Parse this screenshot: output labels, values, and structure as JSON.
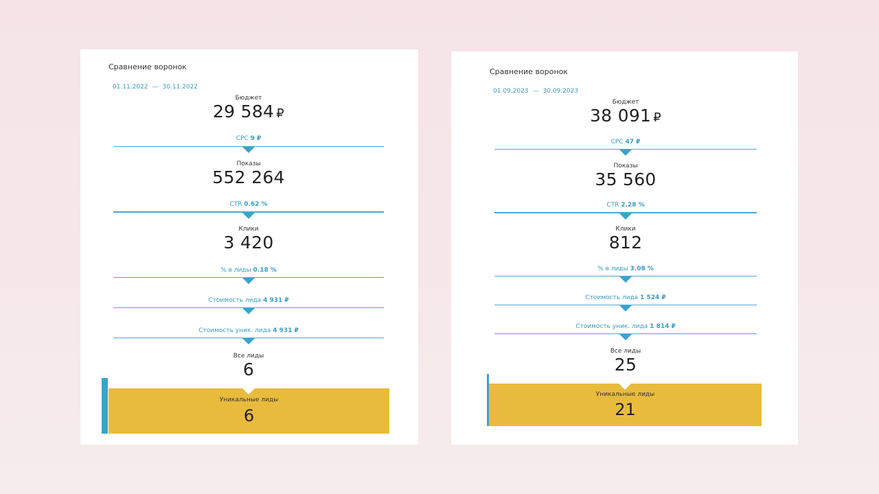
{
  "left": {
    "title": "Сравнение воронок",
    "date_from": "01.11.2022",
    "date_sep": "—",
    "date_to": "30.11.2022",
    "budget_label": "Бюджет",
    "budget_value": "29 584",
    "currency": "₽",
    "cpc_label": "CPC",
    "cpc_value": "9 ₽",
    "impressions_label": "Показы",
    "impressions_value": "552 264",
    "ctr_label": "CTR",
    "ctr_value": "0.62 %",
    "clicks_label": "Клики",
    "clicks_value": "3 420",
    "lead_rate_label": "% в лиды",
    "lead_rate_value": "0.18 %",
    "lead_cost_label": "Стоимость лида",
    "lead_cost_value": "4 931 ₽",
    "uniq_lead_cost_label": "Стоимость уник. лида",
    "uniq_lead_cost_value": "4 931 ₽",
    "all_leads_label": "Все лиды",
    "all_leads_value": "6",
    "unique_leads_label": "Уникальные лиды",
    "unique_leads_value": "6"
  },
  "right": {
    "title": "Сравнение воронок",
    "date_from": "01.09.2023",
    "date_sep": "—",
    "date_to": "30.09.2023",
    "budget_label": "Бюджет",
    "budget_value": "38 091",
    "currency": "₽",
    "cpc_label": "CPC",
    "cpc_value": "47 ₽",
    "impressions_label": "Показы",
    "impressions_value": "35 560",
    "ctr_label": "CTR",
    "ctr_value": "2.28 %",
    "clicks_label": "Клики",
    "clicks_value": "812",
    "lead_rate_label": "% в лиды",
    "lead_rate_value": "3.08 %",
    "lead_cost_label": "Стоимость лида",
    "lead_cost_value": "1 524 ₽",
    "uniq_lead_cost_label": "Стоимость уник. лида",
    "uniq_lead_cost_value": "1 814 ₽",
    "all_leads_label": "Все лиды",
    "all_leads_value": "25",
    "unique_leads_label": "Уникальные лиды",
    "unique_leads_value": "21"
  },
  "colors": {
    "accent_blue": "#3aa3cc",
    "highlight_yellow": "#e9bb3c",
    "background": "#f5e3e7"
  }
}
